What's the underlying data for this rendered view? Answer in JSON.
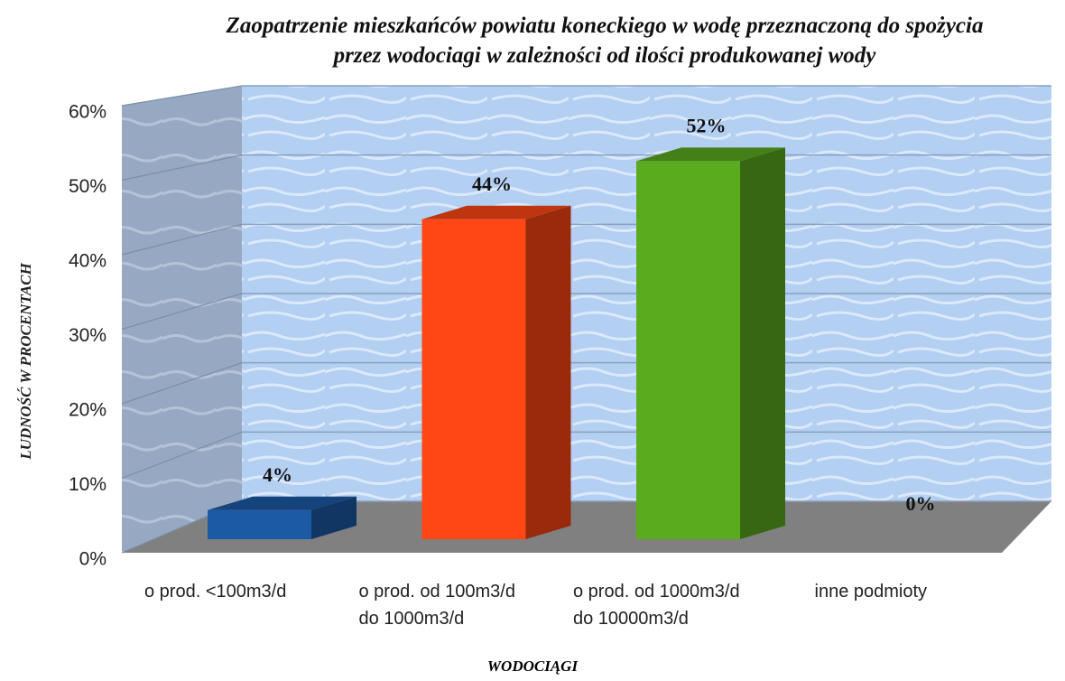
{
  "chart_data": {
    "type": "bar3d",
    "title": "Zaopatrzenie mieszkańców powiatu koneckiego w wodę przeznaczoną do spożycia\nprzez wodociagi w zależności od ilości produkowanej wody",
    "categories": [
      "o prod. <100m3/d",
      "o prod. od 100m3/d\ndo 1000m3/d",
      "o prod. od 1000m3/d\ndo 10000m3/d",
      "inne podmioty"
    ],
    "values": [
      4,
      44,
      52,
      0
    ],
    "value_labels": [
      "4%",
      "44%",
      "52%",
      "0%"
    ],
    "colors": [
      "#1c5aa6",
      "#ff4614",
      "#5bab1f",
      "#8a8a8a"
    ],
    "ylabel": "LUDNOŚĆ W PROCENTACH",
    "xlabel": "WODOCIĄGI",
    "ylim": [
      0,
      60
    ],
    "yticks": [
      {
        "value": 0,
        "label": "0%"
      },
      {
        "value": 10,
        "label": "10%"
      },
      {
        "value": 20,
        "label": "20%"
      },
      {
        "value": 30,
        "label": "30%"
      },
      {
        "value": 40,
        "label": "40%"
      },
      {
        "value": 50,
        "label": "50%"
      },
      {
        "value": 60,
        "label": "60%"
      }
    ],
    "grid": true
  }
}
